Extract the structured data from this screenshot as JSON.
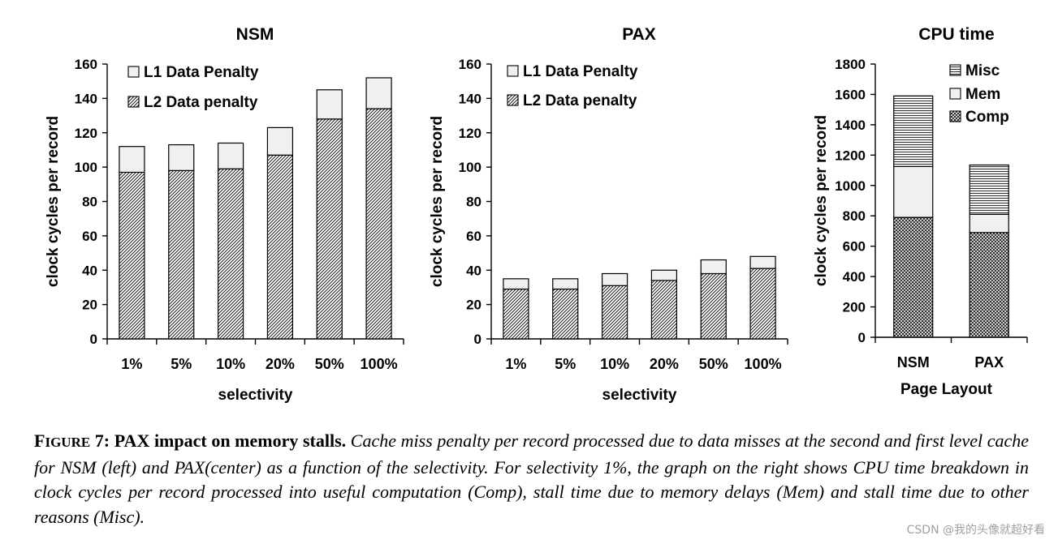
{
  "colors": {
    "ink": "#000000",
    "l1_fill": "#f0f0f0",
    "background": "#ffffff",
    "watermark": "#a0a0a0"
  },
  "chart_data": [
    {
      "type": "bar",
      "stacked": true,
      "title": "NSM",
      "xlabel": "selectivity",
      "ylabel": "clock cycles per record",
      "ylim": [
        0,
        160
      ],
      "ytick_step": 20,
      "categories": [
        "1%",
        "5%",
        "10%",
        "20%",
        "50%",
        "100%"
      ],
      "legend": [
        "L1 Data Penalty",
        "L2 Data penalty"
      ],
      "series": [
        {
          "name": "L2 Data penalty",
          "pattern": "l2",
          "values": [
            97,
            98,
            99,
            107,
            128,
            134
          ]
        },
        {
          "name": "L1 Data Penalty",
          "pattern": "l1",
          "values": [
            15,
            15,
            15,
            16,
            17,
            18
          ]
        }
      ]
    },
    {
      "type": "bar",
      "stacked": true,
      "title": "PAX",
      "xlabel": "selectivity",
      "ylabel": "clock cycles per record",
      "ylim": [
        0,
        160
      ],
      "ytick_step": 20,
      "categories": [
        "1%",
        "5%",
        "10%",
        "20%",
        "50%",
        "100%"
      ],
      "legend": [
        "L1 Data Penalty",
        "L2 Data penalty"
      ],
      "series": [
        {
          "name": "L2 Data penalty",
          "pattern": "l2",
          "values": [
            29,
            29,
            31,
            34,
            38,
            41
          ]
        },
        {
          "name": "L1 Data Penalty",
          "pattern": "l1",
          "values": [
            6,
            6,
            7,
            6,
            8,
            7
          ]
        }
      ]
    },
    {
      "type": "bar",
      "stacked": true,
      "title": "CPU time",
      "xlabel": "Page Layout",
      "ylabel": "clock cycles per record",
      "ylim": [
        0,
        1800
      ],
      "ytick_step": 200,
      "categories": [
        "NSM",
        "PAX"
      ],
      "legend": [
        "Misc",
        "Mem",
        "Comp"
      ],
      "series": [
        {
          "name": "Comp",
          "pattern": "comp",
          "values": [
            790,
            690
          ]
        },
        {
          "name": "Mem",
          "pattern": "mem",
          "values": [
            335,
            120
          ]
        },
        {
          "name": "Misc",
          "pattern": "misc",
          "values": [
            465,
            325
          ]
        }
      ]
    }
  ],
  "caption": {
    "label_first": "F",
    "label_smallcaps": "IGURE",
    "label_rest": " 7: PAX impact on memory stalls.",
    "body": " Cache miss penalty per record processed due to data misses at the second and first level cache for NSM (left) and PAX(center) as a function of the selectivity. For selectivity 1%, the graph on the right shows CPU time breakdown in clock cycles per record processed into useful computation (Comp), stall time due to memory delays (Mem) and stall time due to other reasons (Misc)."
  },
  "watermark": "CSDN @我的头像就超好看"
}
